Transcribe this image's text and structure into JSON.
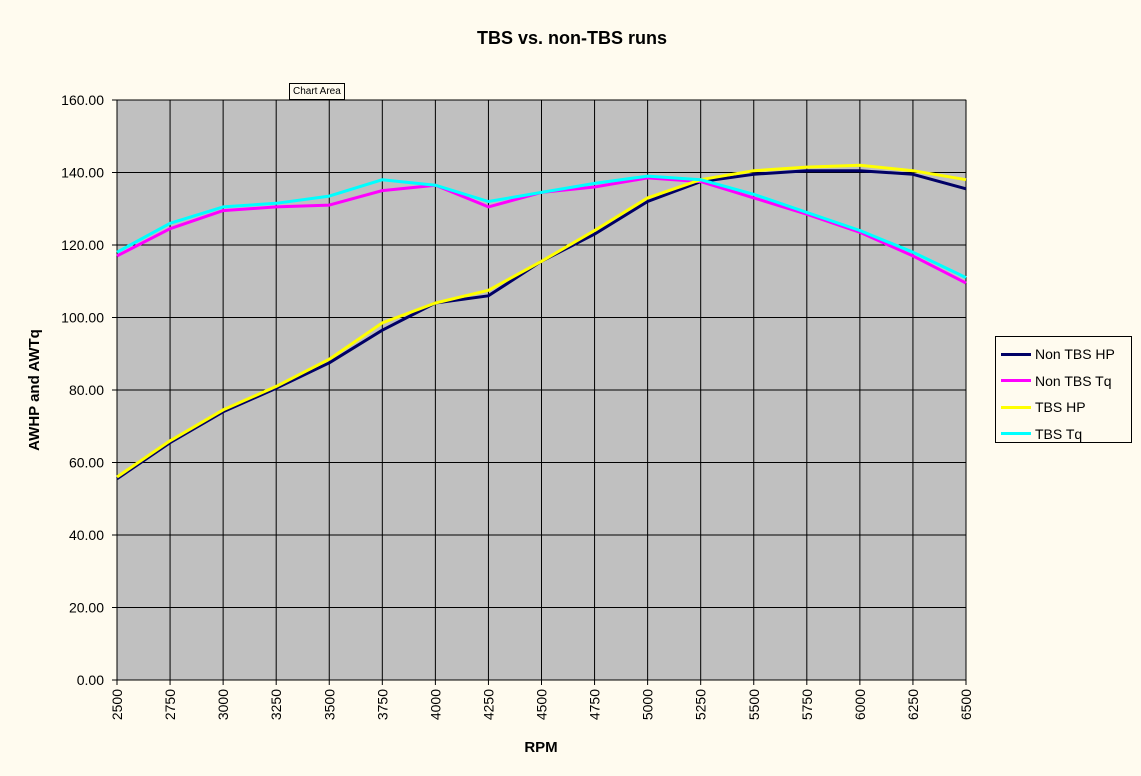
{
  "tooltip": {
    "label": "Chart Area"
  },
  "chart_data": {
    "type": "line",
    "title": "TBS vs. non-TBS runs",
    "xlabel": "RPM",
    "ylabel": "AWHP and AWTq",
    "ylim": [
      0,
      160
    ],
    "y_ticks": [
      "0.00",
      "20.00",
      "40.00",
      "60.00",
      "80.00",
      "100.00",
      "120.00",
      "140.00",
      "160.00"
    ],
    "categories": [
      "2500",
      "2750",
      "3000",
      "3250",
      "3500",
      "3750",
      "4000",
      "4250",
      "4500",
      "4750",
      "5000",
      "5250",
      "5500",
      "5750",
      "6000",
      "6250",
      "6500"
    ],
    "grid": true,
    "plot_background": "#c0c0c0",
    "legend_position": "right",
    "series": [
      {
        "name": "Non TBS HP",
        "color": "#000066",
        "values": [
          55.5,
          65.5,
          74,
          80.5,
          87.5,
          96.5,
          104,
          106,
          115.5,
          123,
          132,
          137.5,
          139.5,
          140.5,
          140.5,
          139.5,
          135.5
        ]
      },
      {
        "name": "Non TBS Tq",
        "color": "#ff00ff",
        "values": [
          117,
          124.5,
          129.5,
          130.5,
          131,
          135,
          136.5,
          130.5,
          134.5,
          136,
          138.5,
          137.5,
          133,
          128.5,
          123.5,
          117,
          109.5
        ]
      },
      {
        "name": "TBS HP",
        "color": "#ffff00",
        "values": [
          56,
          66,
          74.5,
          81,
          88.5,
          98.5,
          104,
          107.5,
          115.5,
          124,
          133,
          138,
          140.5,
          141.5,
          142,
          140.5,
          138
        ]
      },
      {
        "name": "TBS Tq",
        "color": "#00ffff",
        "values": [
          118,
          126,
          130.5,
          131.5,
          133.5,
          138,
          136.5,
          132,
          134.5,
          137,
          139,
          138,
          134,
          129,
          124,
          118,
          111
        ]
      }
    ]
  }
}
